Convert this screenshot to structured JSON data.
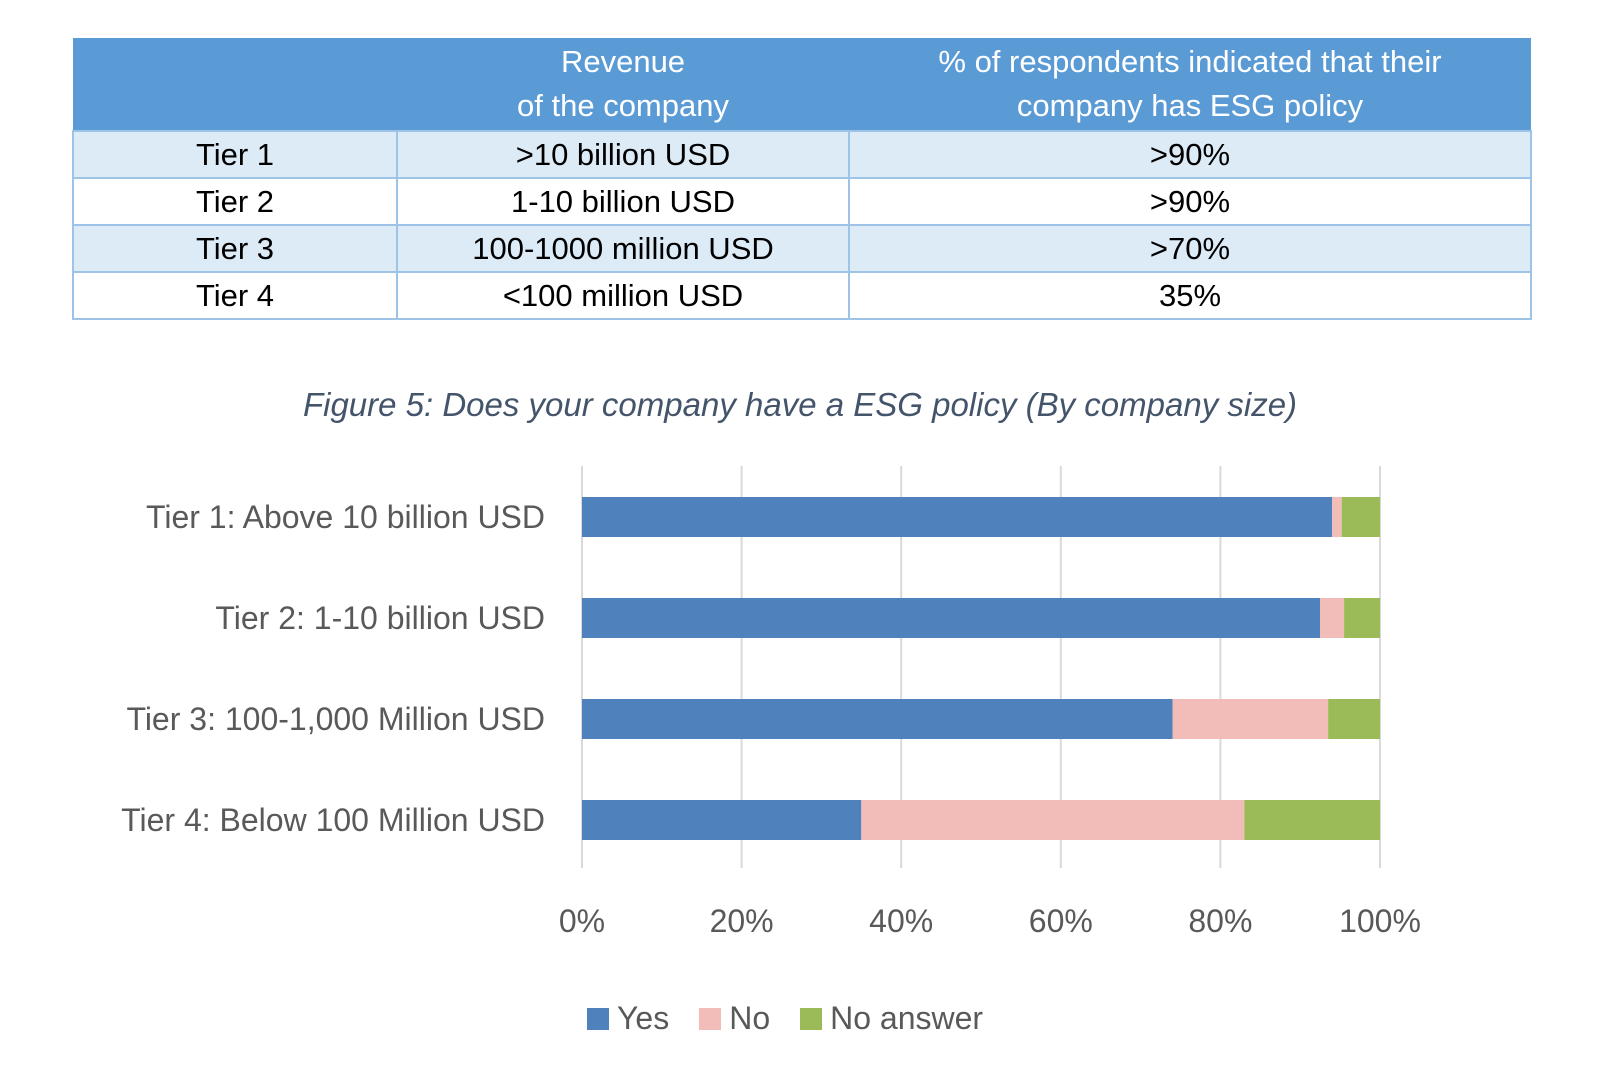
{
  "table": {
    "headers": [
      "",
      "Revenue\nof the company",
      "% of respondents indicated that their\ncompany has ESG policy"
    ],
    "header_line1": [
      "",
      "Revenue",
      "% of respondents indicated that their"
    ],
    "header_line2": [
      "",
      "of the company",
      "company has ESG policy"
    ],
    "rows": [
      [
        "Tier 1",
        ">10 billion USD",
        ">90%"
      ],
      [
        "Tier 2",
        "1-10 billion USD",
        ">90%"
      ],
      [
        "Tier 3",
        "100-1000 million USD",
        ">70%"
      ],
      [
        "Tier 4",
        "<100 million USD",
        "35%"
      ]
    ]
  },
  "chart_data": {
    "type": "bar",
    "orientation": "horizontal",
    "stacked": "percent",
    "title": "Figure 5: Does your company have a ESG policy (By company size)",
    "categories": [
      "Tier 1: Above 10 billion USD",
      "Tier 2: 1-10 billion USD",
      "Tier 3: 100-1,000 Million USD",
      "Tier 4: Below 100 Million USD"
    ],
    "series": [
      {
        "name": "Yes",
        "color": "#4f81bd",
        "values": [
          94,
          92.5,
          74,
          35
        ]
      },
      {
        "name": "No",
        "color": "#f2bcb8",
        "values": [
          1.2,
          3,
          19.5,
          48
        ]
      },
      {
        "name": "No answer",
        "color": "#9bbb59",
        "values": [
          4.8,
          4.5,
          6.5,
          17
        ]
      }
    ],
    "xlim": [
      0,
      100
    ],
    "xticks": [
      "0%",
      "20%",
      "40%",
      "60%",
      "80%",
      "100%"
    ],
    "grid": true,
    "legend": "bottom"
  }
}
